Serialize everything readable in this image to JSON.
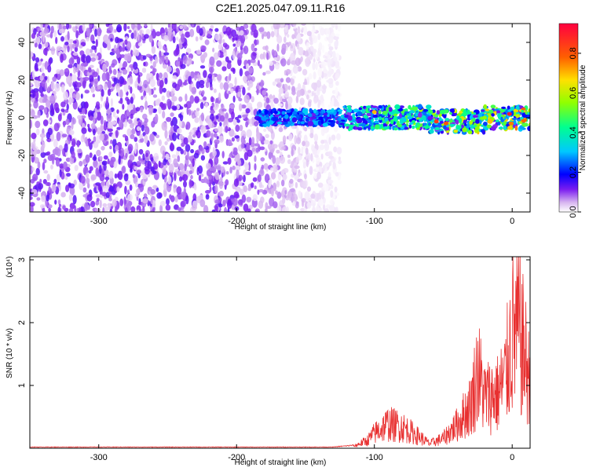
{
  "title": "C2E1.2025.047.09.11.R16",
  "chart_data": [
    {
      "type": "heatmap",
      "xlabel": "Height of straight line (km)",
      "ylabel": "Frequency (Hz)",
      "xlim": [
        -350,
        13
      ],
      "ylim": [
        -50,
        50
      ],
      "x_ticks": [
        -300,
        -200,
        -100,
        0
      ],
      "y_ticks": [
        -40,
        -20,
        0,
        20,
        40
      ],
      "colorbar": {
        "label": "Normalized spectral amplitude",
        "range": [
          0,
          0.95
        ],
        "ticks": [
          0.0,
          0.2,
          0.4,
          0.6,
          0.8
        ],
        "colormap": [
          "#ffffff",
          "#d8b6f0",
          "#7a1cf0",
          "#0000ff",
          "#00c8ff",
          "#00ff90",
          "#90ff00",
          "#ffe000",
          "#ff6000",
          "#ff0040"
        ]
      },
      "regions": [
        {
          "description_x": [
            -350,
            -125
          ],
          "y_range": [
            -50,
            50
          ],
          "amplitude_range": [
            0.0,
            0.12
          ],
          "kind": "broadband noise"
        },
        {
          "description_x": [
            -185,
            13
          ],
          "y_center": 0,
          "y_halfwidth": 5,
          "amplitude_range": [
            0.1,
            0.9
          ],
          "kind": "narrow band near 0 Hz"
        }
      ]
    },
    {
      "type": "line",
      "xlabel": "Height of straight line (km)",
      "ylabel": "SNR (10 * v/v)",
      "y_scale_label": "(x10⁴)",
      "xlim": [
        -350,
        13
      ],
      "ylim": [
        0,
        3.05
      ],
      "x_ticks": [
        -300,
        -200,
        -100,
        0
      ],
      "y_ticks": [
        1,
        2,
        3
      ],
      "color": "#e83030",
      "envelope": [
        {
          "x": -350,
          "y": 0.02
        },
        {
          "x": -130,
          "y": 0.02
        },
        {
          "x": -115,
          "y": 0.05
        },
        {
          "x": -105,
          "y": 0.2
        },
        {
          "x": -100,
          "y": 0.38
        },
        {
          "x": -90,
          "y": 0.62
        },
        {
          "x": -80,
          "y": 0.55
        },
        {
          "x": -70,
          "y": 0.35
        },
        {
          "x": -60,
          "y": 0.12
        },
        {
          "x": -50,
          "y": 0.25
        },
        {
          "x": -40,
          "y": 0.6
        },
        {
          "x": -30,
          "y": 1.1
        },
        {
          "x": -25,
          "y": 2.0
        },
        {
          "x": -20,
          "y": 1.3
        },
        {
          "x": -10,
          "y": 1.4
        },
        {
          "x": -5,
          "y": 1.8
        },
        {
          "x": 0,
          "y": 2.9
        },
        {
          "x": 5,
          "y": 3.0
        },
        {
          "x": 10,
          "y": 2.2
        },
        {
          "x": 13,
          "y": 1.6
        }
      ]
    }
  ]
}
